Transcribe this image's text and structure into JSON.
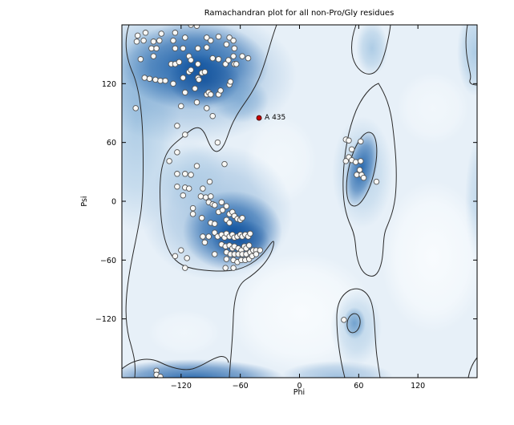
{
  "figure": {
    "title": "Ramachandran plot for all non-Pro/Gly residues",
    "xlabel": "Phi",
    "ylabel": "Psi"
  },
  "axes": {
    "xlim": [
      -180,
      180
    ],
    "ylim": [
      -180,
      180
    ],
    "xticks": [
      -120,
      -60,
      0,
      60,
      120
    ],
    "yticks": [
      120,
      60,
      0,
      -60,
      -120
    ]
  },
  "colors": {
    "density_dark": "#1a5ea8",
    "density_mid": "#5b92c6",
    "density_light": "#a7c8e3",
    "plot_background": "#e7f0f8",
    "contour": "#2a2a2a",
    "point_fill": "#f8f8f6",
    "point_stroke": "#555555",
    "outlier_fill": "#cc0000",
    "outlier_stroke": "#330000"
  },
  "chart_data": {
    "type": "scatter",
    "title": "Ramachandran plot for all non-Pro/Gly residues",
    "xlabel": "Phi",
    "ylabel": "Psi",
    "xlim": [
      -180,
      180
    ],
    "ylim": [
      -180,
      180
    ],
    "grid": false,
    "legend": "none",
    "background": "kernel density estimate of favored/allowed Ramachandran regions (blue shading with contour lines)",
    "series": [
      {
        "name": "non-Pro/Gly residues",
        "marker": "circle",
        "points": [
          [
            -164,
            169
          ],
          [
            -156,
            172
          ],
          [
            -140,
            171
          ],
          [
            -126,
            172
          ],
          [
            -110,
            180
          ],
          [
            -104,
            179
          ],
          [
            -94,
            167
          ],
          [
            -90,
            164
          ],
          [
            -82,
            168
          ],
          [
            -71,
            167
          ],
          [
            -67,
            164
          ],
          [
            -165,
            163
          ],
          [
            -158,
            164
          ],
          [
            -148,
            163
          ],
          [
            -142,
            164
          ],
          [
            -128,
            164
          ],
          [
            -116,
            167
          ],
          [
            -150,
            156
          ],
          [
            -145,
            156
          ],
          [
            -126,
            156
          ],
          [
            -118,
            156
          ],
          [
            -103,
            156
          ],
          [
            -94,
            157
          ],
          [
            -74,
            160
          ],
          [
            -66,
            156
          ],
          [
            -161,
            145
          ],
          [
            -148,
            148
          ],
          [
            -130,
            140
          ],
          [
            -126,
            140
          ],
          [
            -122,
            142
          ],
          [
            -112,
            148
          ],
          [
            -110,
            144
          ],
          [
            -103,
            140
          ],
          [
            -88,
            146
          ],
          [
            -82,
            145
          ],
          [
            -75,
            140
          ],
          [
            -72,
            144
          ],
          [
            -67,
            148
          ],
          [
            -58,
            148
          ],
          [
            -52,
            146
          ],
          [
            -157,
            126
          ],
          [
            -152,
            125
          ],
          [
            -146,
            124
          ],
          [
            -141,
            123
          ],
          [
            -136,
            123
          ],
          [
            -128,
            120
          ],
          [
            -118,
            126
          ],
          [
            -112,
            132
          ],
          [
            -110,
            134
          ],
          [
            -103,
            126
          ],
          [
            -102,
            124
          ],
          [
            -99,
            131
          ],
          [
            -96,
            132
          ],
          [
            -94,
            109
          ],
          [
            -92,
            111
          ],
          [
            -90,
            109
          ],
          [
            -82,
            109
          ],
          [
            -80,
            113
          ],
          [
            -71,
            119
          ],
          [
            -70,
            122
          ],
          [
            -66,
            140
          ],
          [
            -64,
            140
          ],
          [
            -116,
            111
          ],
          [
            -106,
            115
          ],
          [
            -104,
            101
          ],
          [
            -94,
            95
          ],
          [
            -88,
            87
          ],
          [
            -120,
            97
          ],
          [
            -166,
            95
          ],
          [
            -124,
            77
          ],
          [
            -116,
            68
          ],
          [
            -83,
            60
          ],
          [
            -124,
            50
          ],
          [
            -132,
            41
          ],
          [
            -104,
            36
          ],
          [
            -76,
            38
          ],
          [
            -124,
            28
          ],
          [
            -116,
            28
          ],
          [
            -110,
            27
          ],
          [
            -91,
            20
          ],
          [
            -124,
            15
          ],
          [
            -116,
            14
          ],
          [
            -112,
            13
          ],
          [
            -98,
            13
          ],
          [
            -118,
            6
          ],
          [
            -100,
            5
          ],
          [
            -95,
            4
          ],
          [
            -90,
            5
          ],
          [
            -92,
            -1
          ],
          [
            -88,
            -3
          ],
          [
            -86,
            -4
          ],
          [
            -79,
            -1
          ],
          [
            -108,
            -7
          ],
          [
            -108,
            -13
          ],
          [
            -99,
            -17
          ],
          [
            -90,
            -22
          ],
          [
            -86,
            -23
          ],
          [
            -82,
            -11
          ],
          [
            -78,
            -9
          ],
          [
            -74,
            -5
          ],
          [
            -71,
            -13
          ],
          [
            -68,
            -11
          ],
          [
            -66,
            -15
          ],
          [
            -63,
            -18
          ],
          [
            -60,
            -19
          ],
          [
            -58,
            -17
          ],
          [
            -74,
            -19
          ],
          [
            -71,
            -22
          ],
          [
            -86,
            -32
          ],
          [
            -83,
            -36
          ],
          [
            -79,
            -34
          ],
          [
            -76,
            -37
          ],
          [
            -74,
            -33
          ],
          [
            -71,
            -36
          ],
          [
            -68,
            -34
          ],
          [
            -66,
            -37
          ],
          [
            -63,
            -36
          ],
          [
            -60,
            -34
          ],
          [
            -58,
            -36
          ],
          [
            -55,
            -34
          ],
          [
            -52,
            -36
          ],
          [
            -50,
            -33
          ],
          [
            -98,
            -36
          ],
          [
            -92,
            -36
          ],
          [
            -96,
            -42
          ],
          [
            -79,
            -44
          ],
          [
            -75,
            -46
          ],
          [
            -71,
            -45
          ],
          [
            -68,
            -48
          ],
          [
            -66,
            -46
          ],
          [
            -62,
            -48
          ],
          [
            -59,
            -50
          ],
          [
            -56,
            -46
          ],
          [
            -54,
            -48
          ],
          [
            -51,
            -45
          ],
          [
            -74,
            -52
          ],
          [
            -70,
            -54
          ],
          [
            -66,
            -54
          ],
          [
            -62,
            -54
          ],
          [
            -58,
            -54
          ],
          [
            -54,
            -54
          ],
          [
            -50,
            -52
          ],
          [
            -47,
            -50
          ],
          [
            -44,
            -50
          ],
          [
            -120,
            -50
          ],
          [
            -126,
            -56
          ],
          [
            -114,
            -58
          ],
          [
            -86,
            -54
          ],
          [
            -74,
            -59
          ],
          [
            -67,
            -60
          ],
          [
            -63,
            -62
          ],
          [
            -59,
            -60
          ],
          [
            -55,
            -60
          ],
          [
            -51,
            -59
          ],
          [
            -48,
            -56
          ],
          [
            -44,
            -54
          ],
          [
            -40,
            -50
          ],
          [
            -116,
            -68
          ],
          [
            -75,
            -68
          ],
          [
            -67,
            -68
          ],
          [
            47,
            63
          ],
          [
            50,
            62
          ],
          [
            62,
            61
          ],
          [
            53,
            53
          ],
          [
            50,
            45
          ],
          [
            47,
            41
          ],
          [
            53,
            42
          ],
          [
            57,
            40
          ],
          [
            62,
            41
          ],
          [
            61,
            32
          ],
          [
            58,
            27
          ],
          [
            63,
            27
          ],
          [
            65,
            24
          ],
          [
            78,
            20
          ],
          [
            45,
            -121
          ],
          [
            -145,
            -173
          ],
          [
            -145,
            -177
          ],
          [
            -141,
            -179
          ]
        ]
      }
    ],
    "outlier": {
      "label": "A 435",
      "phi": -41,
      "psi": 85
    }
  }
}
